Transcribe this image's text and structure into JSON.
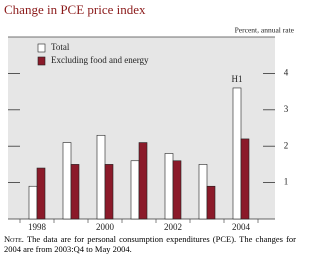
{
  "chart_data": {
    "type": "bar",
    "title": "Change in PCE price index",
    "y_label": "Percent, annual rate",
    "categories": [
      "1998",
      null,
      "2000",
      null,
      "2002",
      null,
      "2004"
    ],
    "series": [
      {
        "name": "Total",
        "color": "#ffffff",
        "values": [
          0.9,
          2.1,
          2.3,
          1.6,
          1.8,
          1.5,
          3.6
        ]
      },
      {
        "name": "Excluding food and energy",
        "color": "#8b1a2a",
        "values": [
          1.4,
          1.5,
          1.5,
          2.1,
          1.6,
          0.9,
          2.2
        ]
      }
    ],
    "annotation": "H1",
    "ylim": [
      0,
      5
    ],
    "yticks": [
      1,
      2,
      3,
      4
    ]
  },
  "note": {
    "lead": "Note.",
    "text": "The data are for personal consumption expenditures (PCE). The changes for 2004 are from 2003:Q4 to May 2004."
  }
}
